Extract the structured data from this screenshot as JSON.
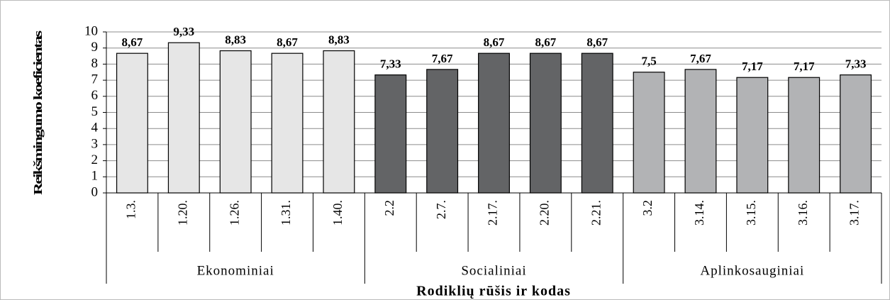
{
  "chart_data": {
    "type": "bar",
    "y_label": "Reikšmingumo koeficientas",
    "x_label": "Rodiklių rūšis ir kodas",
    "ylim": [
      0,
      10
    ],
    "yticks": [
      0,
      1,
      2,
      3,
      4,
      5,
      6,
      7,
      8,
      9,
      10
    ],
    "grid": true,
    "groups": [
      {
        "name": "Ekonominiai",
        "color": "#e6e6e6",
        "categories": [
          "1.3.",
          "1.20.",
          "1.26.",
          "1.31.",
          "1.40."
        ],
        "values": [
          8.67,
          9.33,
          8.83,
          8.67,
          8.83
        ],
        "value_labels": [
          "8,67",
          "9,33",
          "8,83",
          "8,67",
          "8,83"
        ]
      },
      {
        "name": "Socialiniai",
        "color": "#636466",
        "categories": [
          "2.2",
          "2.7.",
          "2.17.",
          "2.20.",
          "2.21."
        ],
        "values": [
          7.33,
          7.67,
          8.67,
          8.67,
          8.67
        ],
        "value_labels": [
          "7,33",
          "7,67",
          "8,67",
          "8,67",
          "8,67"
        ]
      },
      {
        "name": "Aplinkosauginiai",
        "color": "#b2b3b5",
        "categories": [
          "3.2",
          "3.14.",
          "3.15.",
          "3.16.",
          "3.17."
        ],
        "values": [
          7.5,
          7.67,
          7.17,
          7.17,
          7.33
        ],
        "value_labels": [
          "7,5",
          "7,67",
          "7,17",
          "7,17",
          "7,33"
        ]
      }
    ]
  }
}
